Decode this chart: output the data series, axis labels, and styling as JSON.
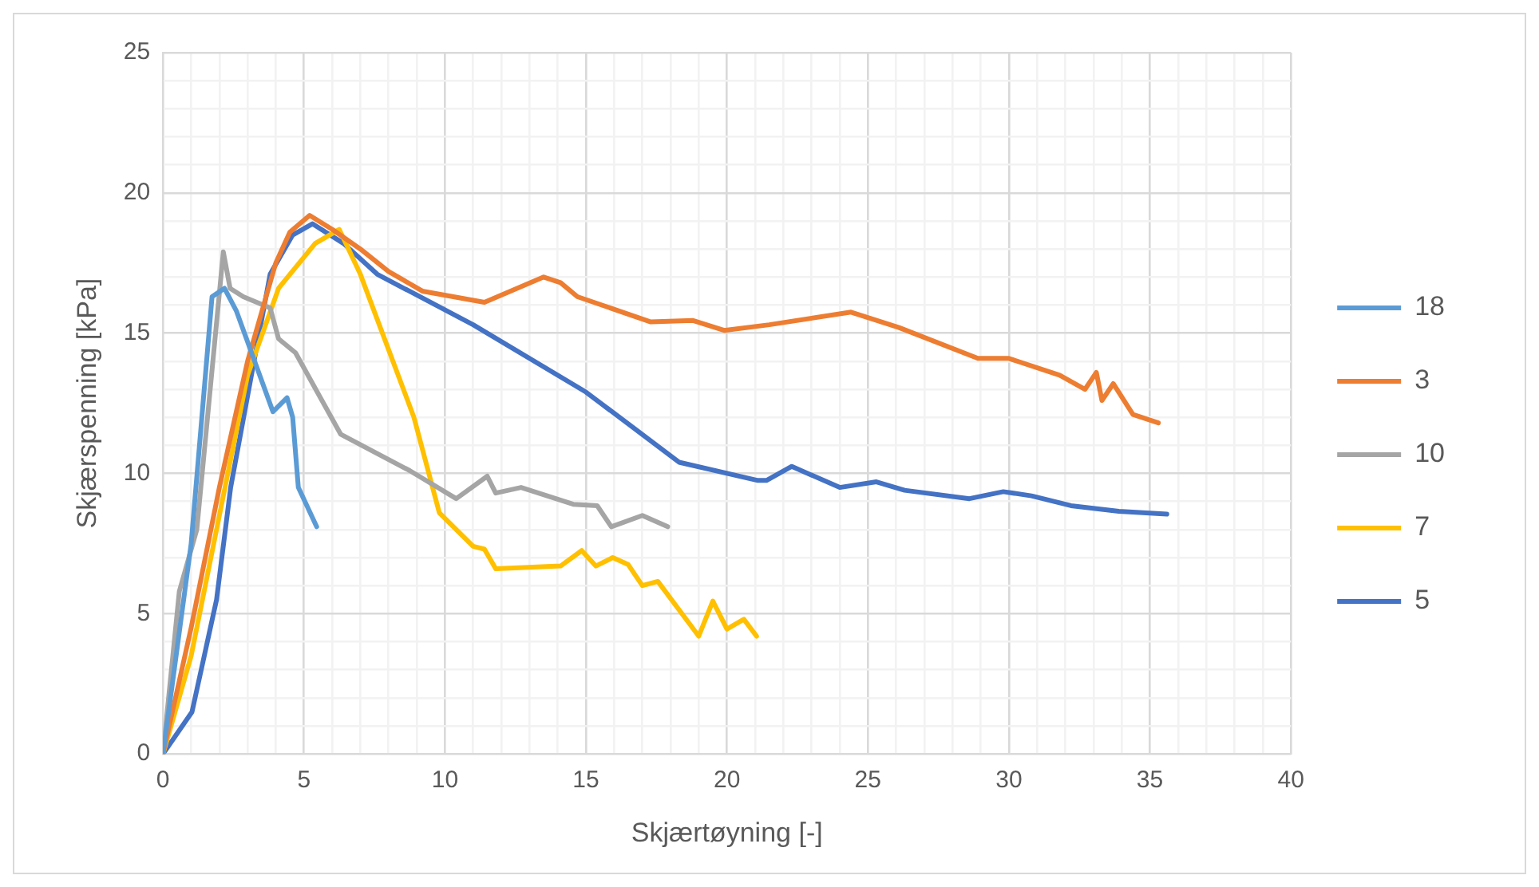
{
  "chart_data": {
    "type": "line",
    "xlabel": "Skjærtøyning [-]",
    "ylabel": "Skjærspenning [kPa]",
    "xlim": [
      0,
      40
    ],
    "ylim": [
      0,
      25
    ],
    "xticks": [
      0,
      {
        "value": 1,
        "label": null
      },
      {
        "value": 2,
        "label": null
      },
      {
        "value": 3,
        "label": null
      },
      {
        "value": 4,
        "label": null
      },
      5,
      {
        "value": 6,
        "label": null
      },
      {
        "value": 7,
        "label": null
      },
      {
        "value": 8,
        "label": null
      },
      {
        "value": 9,
        "label": null
      },
      10,
      {
        "value": 11,
        "label": null
      },
      {
        "value": 12,
        "label": null
      },
      {
        "value": 13,
        "label": null
      },
      {
        "value": 14,
        "label": null
      },
      15,
      {
        "value": 16,
        "label": null
      },
      {
        "value": 17,
        "label": null
      },
      {
        "value": 18,
        "label": null
      },
      {
        "value": 19,
        "label": null
      },
      20,
      {
        "value": 21,
        "label": null
      },
      {
        "value": 22,
        "label": null
      },
      {
        "value": 23,
        "label": null
      },
      {
        "value": 24,
        "label": null
      },
      25,
      {
        "value": 26,
        "label": null
      },
      {
        "value": 27,
        "label": null
      },
      {
        "value": 28,
        "label": null
      },
      {
        "value": 29,
        "label": null
      },
      30,
      {
        "value": 31,
        "label": null
      },
      {
        "value": 32,
        "label": null
      },
      {
        "value": 33,
        "label": null
      },
      {
        "value": 34,
        "label": null
      },
      35,
      {
        "value": 36,
        "label": null
      },
      {
        "value": 37,
        "label": null
      },
      {
        "value": 38,
        "label": null
      },
      {
        "value": 39,
        "label": null
      },
      40
    ],
    "yticks": [
      0,
      {
        "value": 1,
        "label": null
      },
      {
        "value": 2,
        "label": null
      },
      {
        "value": 3,
        "label": null
      },
      {
        "value": 4,
        "label": null
      },
      5,
      {
        "value": 6,
        "label": null
      },
      {
        "value": 7,
        "label": null
      },
      {
        "value": 8,
        "label": null
      },
      {
        "value": 9,
        "label": null
      },
      10,
      {
        "value": 11,
        "label": null
      },
      {
        "value": 12,
        "label": null
      },
      {
        "value": 13,
        "label": null
      },
      {
        "value": 14,
        "label": null
      },
      15,
      {
        "value": 16,
        "label": null
      },
      {
        "value": 17,
        "label": null
      },
      {
        "value": 18,
        "label": null
      },
      {
        "value": 19,
        "label": null
      },
      20,
      {
        "value": 21,
        "label": null
      },
      {
        "value": 22,
        "label": null
      },
      {
        "value": 23,
        "label": null
      },
      {
        "value": 24,
        "label": null
      },
      25
    ],
    "grid": true,
    "legend": "right",
    "marker": "none",
    "line_style": "solid",
    "series": [
      {
        "name": "18",
        "color": "#5b9bd5",
        "x": [
          0,
          0.6,
          1.0,
          1.74,
          2.18,
          2.6,
          3.9,
          4.4,
          4.6,
          4.8,
          5.45
        ],
        "values": [
          0,
          4.5,
          7.5,
          16.3,
          16.6,
          15.8,
          12.2,
          12.7,
          12.0,
          9.5,
          8.1
        ]
      },
      {
        "name": "3",
        "color": "#ed7d31",
        "x": [
          0,
          1,
          2,
          3,
          4,
          4.5,
          5.2,
          6,
          7,
          8,
          9.2,
          11.4,
          13.5,
          14.1,
          14.7,
          17.3,
          18.8,
          19.9,
          21.5,
          24.4,
          26.1,
          28.9,
          30.0,
          31.8,
          32.7,
          33.1,
          33.3,
          33.7,
          34.4,
          35.3
        ],
        "values": [
          0,
          4.5,
          9.5,
          14,
          17.5,
          18.6,
          19.2,
          18.7,
          18,
          17.2,
          16.5,
          16.1,
          17.0,
          16.8,
          16.3,
          15.4,
          15.45,
          15.1,
          15.3,
          15.75,
          15.2,
          14.1,
          14.1,
          13.5,
          13.0,
          13.6,
          12.6,
          13.2,
          12.1,
          11.8
        ]
      },
      {
        "name": "10",
        "color": "#a5a5a5",
        "x": [
          0,
          0.58,
          1.2,
          2.14,
          2.38,
          2.85,
          3.8,
          4.1,
          4.7,
          6.3,
          8.75,
          10.4,
          11.5,
          11.8,
          12.7,
          14.55,
          15.4,
          15.9,
          17.0,
          17.9
        ],
        "values": [
          0,
          5.8,
          8.0,
          17.9,
          16.6,
          16.3,
          15.9,
          14.8,
          14.3,
          11.4,
          10.1,
          9.1,
          9.9,
          9.3,
          9.5,
          8.9,
          8.85,
          8.1,
          8.5,
          8.1
        ]
      },
      {
        "name": "7",
        "color": "#ffc000",
        "x": [
          0,
          1,
          2,
          3,
          4.1,
          5.4,
          6.25,
          7.0,
          8.9,
          9.8,
          11.0,
          11.4,
          11.8,
          14.1,
          14.85,
          15.35,
          15.95,
          16.5,
          17.0,
          17.55,
          19.0,
          19.5,
          20.0,
          20.6,
          21.05
        ],
        "values": [
          0,
          3.5,
          8.5,
          13.5,
          16.6,
          18.2,
          18.7,
          17.1,
          12.0,
          8.6,
          7.4,
          7.3,
          6.6,
          6.7,
          7.25,
          6.7,
          7.0,
          6.75,
          6.0,
          6.15,
          4.2,
          5.45,
          4.45,
          4.8,
          4.2
        ]
      },
      {
        "name": "5",
        "color": "#4472c4",
        "x": [
          0,
          1.03,
          1.9,
          2.4,
          3.8,
          4.6,
          5.3,
          6.4,
          7.6,
          11,
          15,
          18.3,
          21.1,
          21.4,
          22.3,
          24.0,
          25.3,
          26.3,
          28.6,
          29.8,
          30.8,
          32.2,
          33.9,
          35.6
        ],
        "values": [
          0,
          1.5,
          5.5,
          9.5,
          17.1,
          18.5,
          18.9,
          18.2,
          17.1,
          15.3,
          12.9,
          10.4,
          9.75,
          9.75,
          10.25,
          9.5,
          9.7,
          9.4,
          9.1,
          9.35,
          9.2,
          8.85,
          8.65,
          8.55
        ]
      }
    ]
  }
}
